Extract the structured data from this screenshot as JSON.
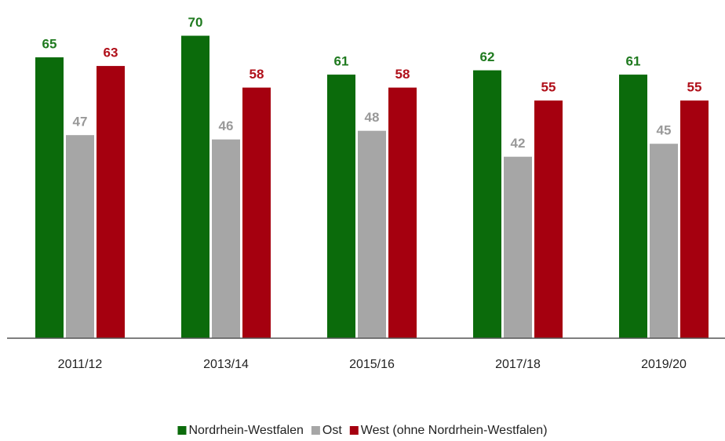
{
  "chart_data": {
    "type": "bar",
    "categories": [
      "2011/12",
      "2013/14",
      "2015/16",
      "2017/18",
      "2019/20"
    ],
    "series": [
      {
        "name": "Nordrhein-Westfalen",
        "color": "#0b6b0b",
        "label_color": "#1f7a1f",
        "values": [
          65,
          70,
          61,
          62,
          61
        ]
      },
      {
        "name": "Ost",
        "color": "#a6a6a6",
        "label_color": "#999999",
        "values": [
          47,
          46,
          48,
          42,
          45
        ]
      },
      {
        "name": "West (ohne Nordrhein-Westfalen)",
        "color": "#a5000f",
        "label_color": "#b0101a",
        "values": [
          63,
          58,
          58,
          55,
          55
        ]
      }
    ],
    "ylim": [
      0,
      75
    ],
    "grid": false,
    "legend": "bottom"
  }
}
